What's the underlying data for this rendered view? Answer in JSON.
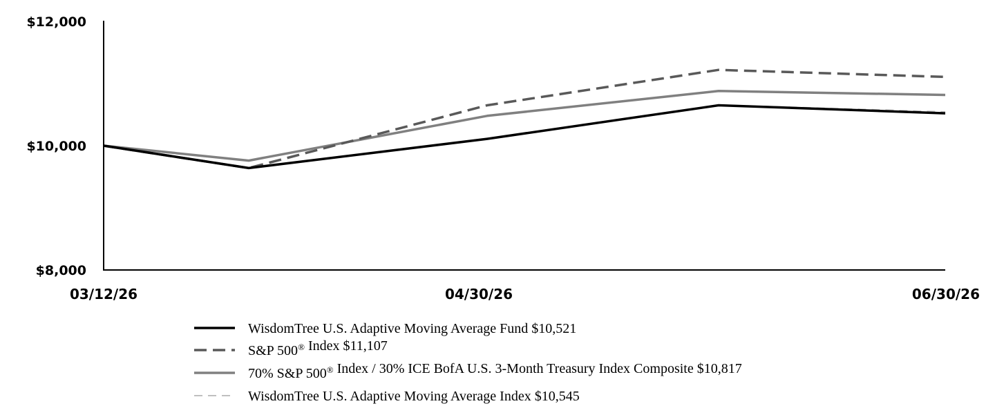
{
  "chart_data": {
    "type": "line",
    "x_labels": [
      "03/12/26",
      "04/30/26",
      "06/30/26"
    ],
    "x": [
      "03/12/26",
      "03/31/26",
      "04/30/26",
      "05/31/26",
      "06/30/26"
    ],
    "y_ticks": [
      "$12,000",
      "$10,000",
      "$8,000"
    ],
    "ylim": [
      8000,
      12000
    ],
    "grid": false,
    "legend_position": "bottom",
    "series": [
      {
        "name": "WisdomTree U.S. Adaptive Moving Average Fund",
        "final_value": "$10,521",
        "values": [
          10000,
          9640,
          10110,
          10650,
          10521
        ],
        "color": "#000000",
        "style": "solid"
      },
      {
        "name": "S&P 500® Index",
        "final_value": "$11,107",
        "values": [
          10000,
          9640,
          10650,
          11220,
          11107
        ],
        "color": "#595959",
        "style": "dashed"
      },
      {
        "name": "70% S&P 500® Index / 30% ICE BofA U.S. 3-Month Treasury Index Composite",
        "final_value": "$10,817",
        "values": [
          10000,
          9760,
          10480,
          10880,
          10817
        ],
        "color": "#808080",
        "style": "solid"
      },
      {
        "name": "WisdomTree U.S. Adaptive Moving Average Index",
        "final_value": "$10,545",
        "values": [
          10000,
          9645,
          10115,
          10655,
          10545
        ],
        "color": "#bfbfbf",
        "style": "dashed"
      }
    ]
  }
}
